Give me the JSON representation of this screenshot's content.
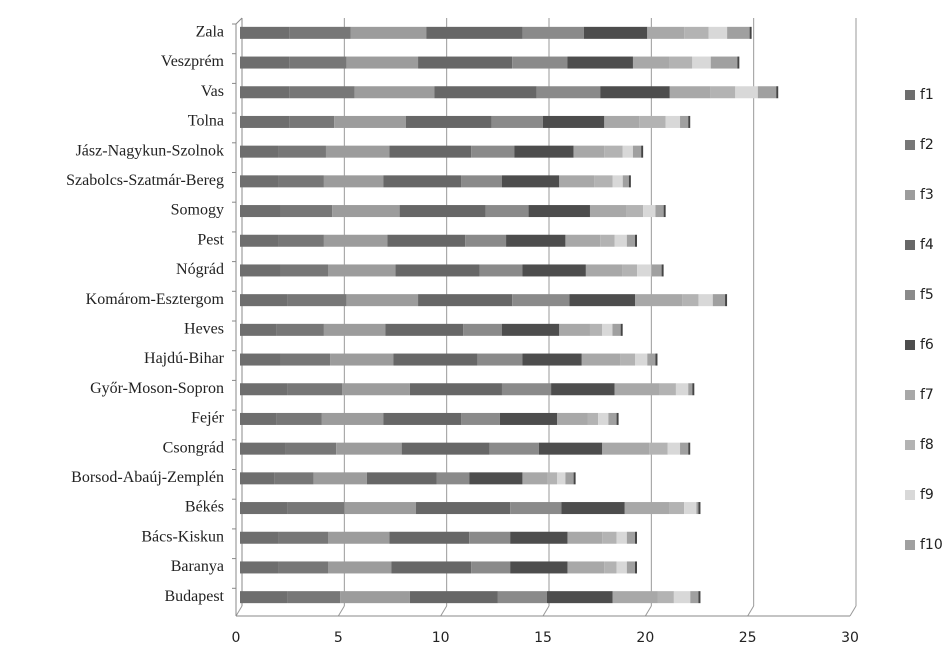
{
  "chart_data": {
    "type": "stacked-bar-horizontal",
    "categories": [
      "Zala",
      "Veszprém",
      "Vas",
      "Tolna",
      "Jász-Nagykun-Szolnok",
      "Szabolcs-Szatmár-Bereg",
      "Somogy",
      "Pest",
      "Nógrád",
      "Komárom-Esztergom",
      "Heves",
      "Hajdú-Bihar",
      "Győr-Moson-Sopron",
      "Fejér",
      "Csongrád",
      "Borsod-Abaúj-Zemplén",
      "Békés",
      "Bács-Kiskun",
      "Baranya",
      "Budapest"
    ],
    "series": [
      {
        "name": "f1",
        "color": "#6e6e6e",
        "values": [
          2.4,
          2.4,
          2.4,
          2.4,
          1.9,
          1.9,
          2.0,
          1.9,
          2.0,
          2.3,
          1.8,
          2.0,
          2.3,
          1.8,
          2.2,
          1.7,
          2.3,
          1.9,
          1.9,
          2.3
        ]
      },
      {
        "name": "f2",
        "color": "#777777",
        "values": [
          3.0,
          2.8,
          3.2,
          2.2,
          2.3,
          2.2,
          2.5,
          2.2,
          2.3,
          2.9,
          2.3,
          2.4,
          2.7,
          2.2,
          2.5,
          1.9,
          2.8,
          2.4,
          2.4,
          2.6
        ]
      },
      {
        "name": "f3",
        "color": "#9c9c9c",
        "values": [
          3.7,
          3.5,
          3.9,
          3.5,
          3.1,
          2.9,
          3.3,
          3.1,
          3.3,
          3.5,
          3.0,
          3.1,
          3.3,
          3.0,
          3.2,
          2.6,
          3.5,
          3.0,
          3.1,
          3.4
        ]
      },
      {
        "name": "f4",
        "color": "#676767",
        "values": [
          4.7,
          4.6,
          5.0,
          4.2,
          4.0,
          3.8,
          4.2,
          3.8,
          4.1,
          4.6,
          3.8,
          4.1,
          4.5,
          3.8,
          4.3,
          3.4,
          4.6,
          3.9,
          3.9,
          4.3
        ]
      },
      {
        "name": "f5",
        "color": "#8a8a8a",
        "values": [
          3.0,
          2.7,
          3.1,
          2.5,
          2.1,
          2.0,
          2.1,
          2.0,
          2.1,
          2.8,
          1.9,
          2.2,
          2.4,
          1.9,
          2.4,
          1.6,
          2.5,
          2.0,
          1.9,
          2.4
        ]
      },
      {
        "name": "f6",
        "color": "#4d4d4d",
        "values": [
          3.1,
          3.2,
          3.4,
          3.0,
          2.9,
          2.8,
          3.0,
          2.9,
          3.1,
          3.2,
          2.8,
          2.9,
          3.1,
          2.8,
          3.1,
          2.6,
          3.1,
          2.8,
          2.8,
          3.2
        ]
      },
      {
        "name": "f7",
        "color": "#a8a8a8",
        "values": [
          1.8,
          1.8,
          2.0,
          1.7,
          1.5,
          1.7,
          1.8,
          1.7,
          1.8,
          2.3,
          1.5,
          1.9,
          2.2,
          1.5,
          2.3,
          1.2,
          2.2,
          1.7,
          1.8,
          2.2
        ]
      },
      {
        "name": "f8",
        "color": "#b3b3b3",
        "values": [
          1.2,
          1.1,
          1.2,
          1.3,
          0.9,
          0.9,
          0.8,
          0.7,
          0.7,
          0.8,
          0.6,
          0.7,
          0.8,
          0.5,
          0.9,
          0.5,
          0.7,
          0.7,
          0.6,
          0.8
        ]
      },
      {
        "name": "f9",
        "color": "#d8d8d8",
        "values": [
          0.9,
          0.9,
          1.1,
          0.7,
          0.5,
          0.5,
          0.6,
          0.6,
          0.7,
          0.7,
          0.5,
          0.6,
          0.6,
          0.5,
          0.6,
          0.4,
          0.6,
          0.5,
          0.5,
          0.8
        ]
      },
      {
        "name": "f10",
        "color": "#a0a0a0",
        "values": [
          1.1,
          1.3,
          0.9,
          0.4,
          0.4,
          0.3,
          0.4,
          0.4,
          0.5,
          0.6,
          0.4,
          0.4,
          0.2,
          0.4,
          0.4,
          0.4,
          0.1,
          0.4,
          0.4,
          0.4
        ]
      }
    ],
    "xlim": [
      0,
      30
    ],
    "xticks": [
      0,
      5,
      10,
      15,
      20,
      25,
      30
    ],
    "grid": true,
    "legend": "right"
  }
}
